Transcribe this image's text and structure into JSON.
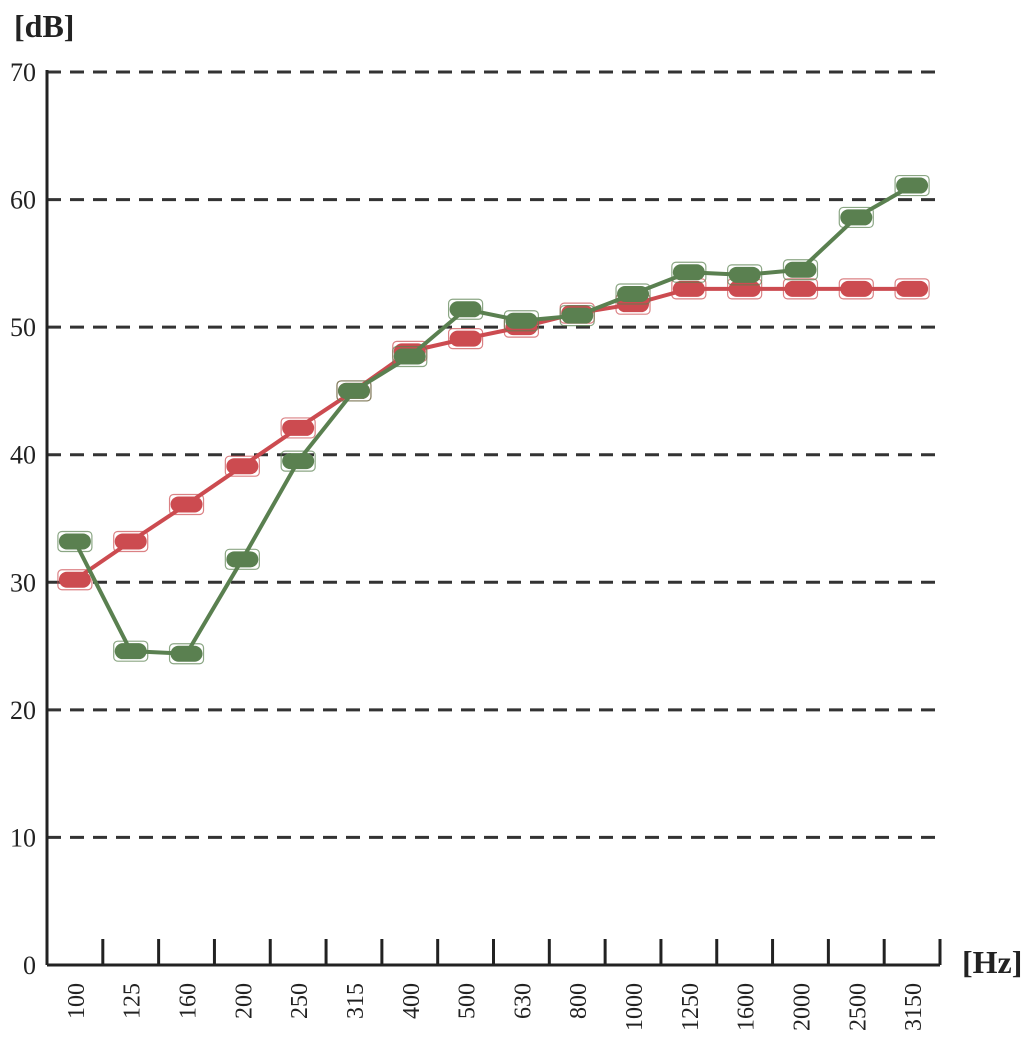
{
  "chart_data": {
    "type": "line",
    "title": "",
    "xlabel": "[Hz]",
    "ylabel": "[dB]",
    "categories": [
      "100",
      "125",
      "160",
      "200",
      "250",
      "315",
      "400",
      "500",
      "630",
      "800",
      "1000",
      "1250",
      "1600",
      "2000",
      "2500",
      "3150"
    ],
    "ylim": [
      0,
      70
    ],
    "yticks": [
      "0",
      "10",
      "20",
      "30",
      "40",
      "50",
      "60",
      "70"
    ],
    "grid": "horizontal-dashed",
    "series": [
      {
        "color": "#cc4b50",
        "values": [
          30.2,
          33.2,
          36.1,
          39.1,
          42.1,
          45.0,
          48.1,
          49.1,
          50.0,
          51.1,
          51.8,
          53.0,
          53.0,
          53.0,
          53.0,
          53.0
        ]
      },
      {
        "color": "#5a8050",
        "values": [
          33.2,
          24.6,
          24.4,
          31.8,
          39.5,
          45.0,
          47.7,
          51.4,
          50.5,
          50.9,
          52.6,
          54.3,
          54.1,
          54.5,
          58.6,
          61.1
        ]
      }
    ]
  }
}
